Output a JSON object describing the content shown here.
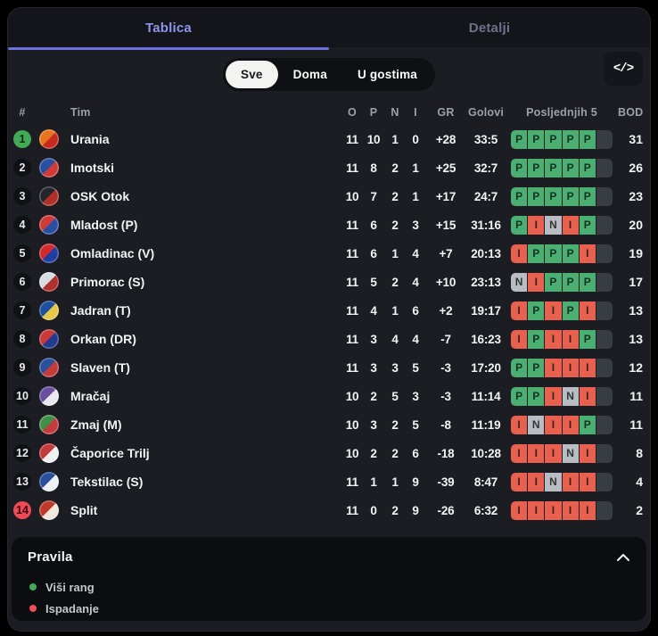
{
  "tabs": [
    {
      "label": "Tablica",
      "active": true
    },
    {
      "label": "Detalji",
      "active": false
    }
  ],
  "filters": [
    {
      "label": "Sve",
      "active": true
    },
    {
      "label": "Doma",
      "active": false
    },
    {
      "label": "U gostima",
      "active": false
    }
  ],
  "code_button_label": "</>",
  "table": {
    "headers": {
      "rank": "#",
      "team": "Tim",
      "played": "O",
      "wins": "P",
      "draws": "N",
      "losses": "I",
      "gd": "GR",
      "goals": "Golovi",
      "last5": "Posljednjih 5",
      "points": "BOD"
    },
    "teams": [
      {
        "rank": 1,
        "name": "Urania",
        "played": 11,
        "wins": 10,
        "draws": 1,
        "losses": 0,
        "gd": "+28",
        "goals": "33:5",
        "form": [
          "P",
          "P",
          "P",
          "P",
          "P"
        ],
        "points": 31,
        "rank_status": "promotion",
        "logo_colors": [
          "#e8731f",
          "#c62a1e"
        ]
      },
      {
        "rank": 2,
        "name": "Imotski",
        "played": 11,
        "wins": 8,
        "draws": 2,
        "losses": 1,
        "gd": "+25",
        "goals": "32:7",
        "form": [
          "P",
          "P",
          "P",
          "P",
          "P"
        ],
        "points": 26,
        "rank_status": "",
        "logo_colors": [
          "#2b4fa0",
          "#cf3b38"
        ]
      },
      {
        "rank": 3,
        "name": "OSK Otok",
        "played": 10,
        "wins": 7,
        "draws": 2,
        "losses": 1,
        "gd": "+17",
        "goals": "24:7",
        "form": [
          "P",
          "P",
          "P",
          "P",
          "P"
        ],
        "points": 23,
        "rank_status": "",
        "logo_colors": [
          "#23252b",
          "#b03028"
        ]
      },
      {
        "rank": 4,
        "name": "Mladost (P)",
        "played": 11,
        "wins": 6,
        "draws": 2,
        "losses": 3,
        "gd": "+15",
        "goals": "31:16",
        "form": [
          "P",
          "I",
          "N",
          "I",
          "P"
        ],
        "points": 20,
        "rank_status": "",
        "logo_colors": [
          "#cf3b38",
          "#2b4fa0"
        ]
      },
      {
        "rank": 5,
        "name": "Omladinac (V)",
        "played": 11,
        "wins": 6,
        "draws": 1,
        "losses": 4,
        "gd": "+7",
        "goals": "20:13",
        "form": [
          "I",
          "P",
          "P",
          "P",
          "I"
        ],
        "points": 19,
        "rank_status": "",
        "logo_colors": [
          "#d12a2e",
          "#1f3f9e"
        ]
      },
      {
        "rank": 6,
        "name": "Primorac (S)",
        "played": 11,
        "wins": 5,
        "draws": 2,
        "losses": 4,
        "gd": "+10",
        "goals": "23:13",
        "form": [
          "N",
          "I",
          "P",
          "P",
          "P"
        ],
        "points": 17,
        "rank_status": "",
        "logo_colors": [
          "#d8dde2",
          "#b03030"
        ]
      },
      {
        "rank": 7,
        "name": "Jadran (T)",
        "played": 11,
        "wins": 4,
        "draws": 1,
        "losses": 6,
        "gd": "+2",
        "goals": "19:17",
        "form": [
          "I",
          "P",
          "I",
          "P",
          "I"
        ],
        "points": 13,
        "rank_status": "",
        "logo_colors": [
          "#1f4f9e",
          "#e8c84a"
        ]
      },
      {
        "rank": 8,
        "name": "Orkan (DR)",
        "played": 11,
        "wins": 3,
        "draws": 4,
        "losses": 4,
        "gd": "-7",
        "goals": "16:23",
        "form": [
          "I",
          "P",
          "I",
          "I",
          "P"
        ],
        "points": 13,
        "rank_status": "",
        "logo_colors": [
          "#c83a3a",
          "#243a8c"
        ]
      },
      {
        "rank": 9,
        "name": "Slaven (T)",
        "played": 11,
        "wins": 3,
        "draws": 3,
        "losses": 5,
        "gd": "-3",
        "goals": "17:20",
        "form": [
          "P",
          "P",
          "I",
          "I",
          "I"
        ],
        "points": 12,
        "rank_status": "",
        "logo_colors": [
          "#2a4f9c",
          "#c23c3c"
        ]
      },
      {
        "rank": 10,
        "name": "Mračaj",
        "played": 10,
        "wins": 2,
        "draws": 5,
        "losses": 3,
        "gd": "-3",
        "goals": "11:14",
        "form": [
          "P",
          "P",
          "I",
          "N",
          "I"
        ],
        "points": 11,
        "rank_status": "",
        "logo_colors": [
          "#6a4fa0",
          "#e9e9ef"
        ]
      },
      {
        "rank": 11,
        "name": "Zmaj (M)",
        "played": 10,
        "wins": 3,
        "draws": 2,
        "losses": 5,
        "gd": "-8",
        "goals": "11:19",
        "form": [
          "I",
          "N",
          "I",
          "I",
          "P"
        ],
        "points": 11,
        "rank_status": "",
        "logo_colors": [
          "#3f8f4a",
          "#c23c3c"
        ]
      },
      {
        "rank": 12,
        "name": "Čaporice Trilj",
        "played": 10,
        "wins": 2,
        "draws": 2,
        "losses": 6,
        "gd": "-18",
        "goals": "10:28",
        "form": [
          "I",
          "I",
          "I",
          "N",
          "I"
        ],
        "points": 8,
        "rank_status": "",
        "logo_colors": [
          "#c23c3c",
          "#eef0f2"
        ]
      },
      {
        "rank": 13,
        "name": "Tekstilac (S)",
        "played": 11,
        "wins": 1,
        "draws": 1,
        "losses": 9,
        "gd": "-39",
        "goals": "8:47",
        "form": [
          "I",
          "I",
          "N",
          "I",
          "I"
        ],
        "points": 4,
        "rank_status": "",
        "logo_colors": [
          "#2a4f9c",
          "#eef0f2"
        ]
      },
      {
        "rank": 14,
        "name": "Split",
        "played": 11,
        "wins": 0,
        "draws": 2,
        "losses": 9,
        "gd": "-26",
        "goals": "6:32",
        "form": [
          "I",
          "I",
          "I",
          "I",
          "I"
        ],
        "points": 2,
        "rank_status": "relegation",
        "logo_colors": [
          "#c0392b",
          "#f2e7dc"
        ]
      }
    ]
  },
  "rules": {
    "title": "Pravila",
    "legend": [
      {
        "label": "Viši rang",
        "color": "#43ab57"
      },
      {
        "label": "Ispadanje",
        "color": "#ef4f58"
      }
    ]
  },
  "colors": {
    "accent": "#6c70dd",
    "form_win": "#4caf72",
    "form_draw": "#b9bcc3",
    "form_loss": "#e8614f",
    "form_empty": "#383d44",
    "promotion": "#43ab57",
    "relegation": "#ef4b56"
  }
}
